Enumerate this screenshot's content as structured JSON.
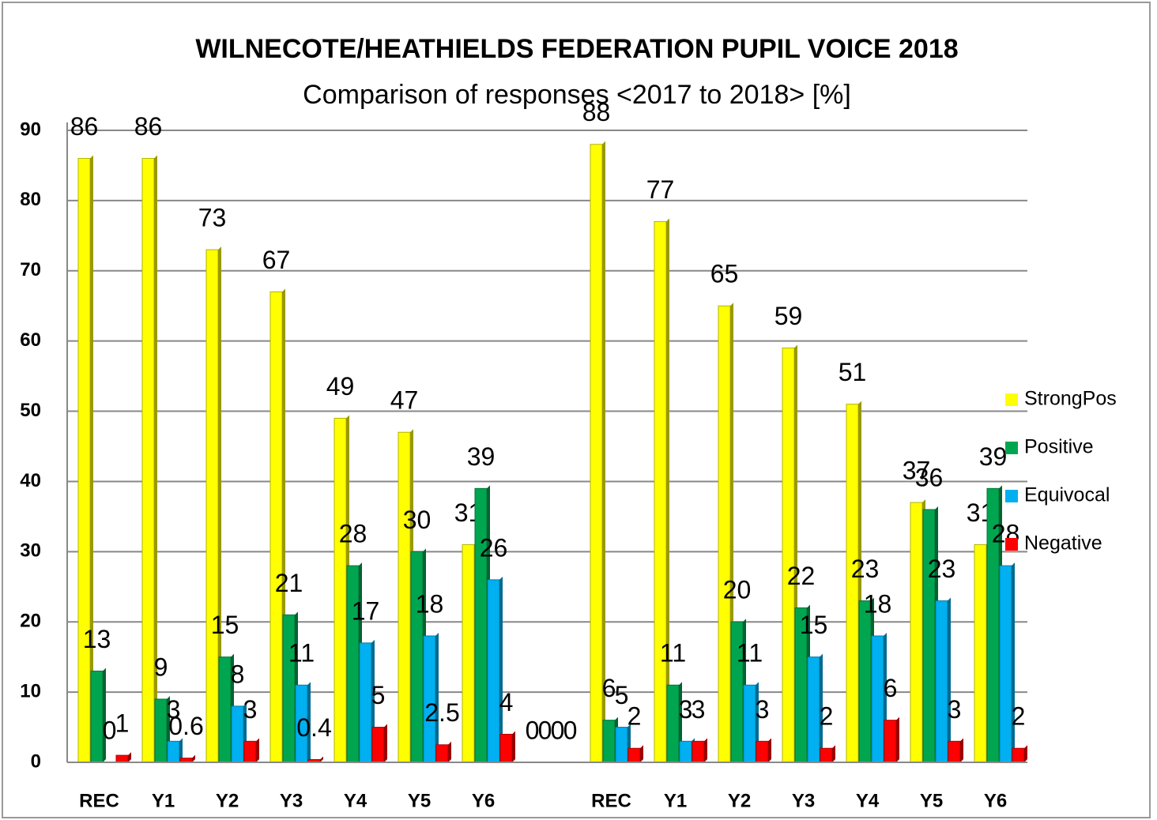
{
  "chart_data": {
    "type": "bar",
    "title": "WILNECOTE/HEATHIELDS FEDERATION PUPIL VOICE 2018",
    "subtitle": "Comparison of responses  <2017 to 2018> [%]",
    "categories": [
      "REC",
      "Y1",
      "Y2",
      "Y3",
      "Y4",
      "Y5",
      "Y6",
      null,
      "REC",
      "Y1",
      "Y2",
      "Y3",
      "Y4",
      "Y5",
      "Y6"
    ],
    "series": [
      {
        "name": "StrongPos",
        "color": "#ffff00",
        "values": [
          86,
          86,
          73,
          67,
          49,
          47,
          31,
          0,
          88,
          77,
          65,
          59,
          51,
          37,
          31
        ]
      },
      {
        "name": "Positive",
        "color": "#00a550",
        "values": [
          13,
          9,
          15,
          21,
          28,
          30,
          39,
          0,
          6,
          11,
          20,
          22,
          23,
          36,
          39
        ]
      },
      {
        "name": "Equivocal",
        "color": "#00b0f0",
        "values": [
          0,
          3,
          8,
          11,
          17,
          18,
          26,
          0,
          5,
          3,
          11,
          15,
          18,
          23,
          28
        ]
      },
      {
        "name": "Negative",
        "color": "#ff0000",
        "values": [
          1,
          0.6,
          3,
          0.4,
          5,
          2.5,
          4,
          0,
          2,
          3,
          3,
          2,
          6,
          3,
          2
        ]
      }
    ],
    "ylim": [
      0,
      90
    ],
    "yticks": [
      0,
      10,
      20,
      30,
      40,
      50,
      60,
      70,
      80,
      90
    ],
    "grid": true,
    "legend": "right"
  }
}
